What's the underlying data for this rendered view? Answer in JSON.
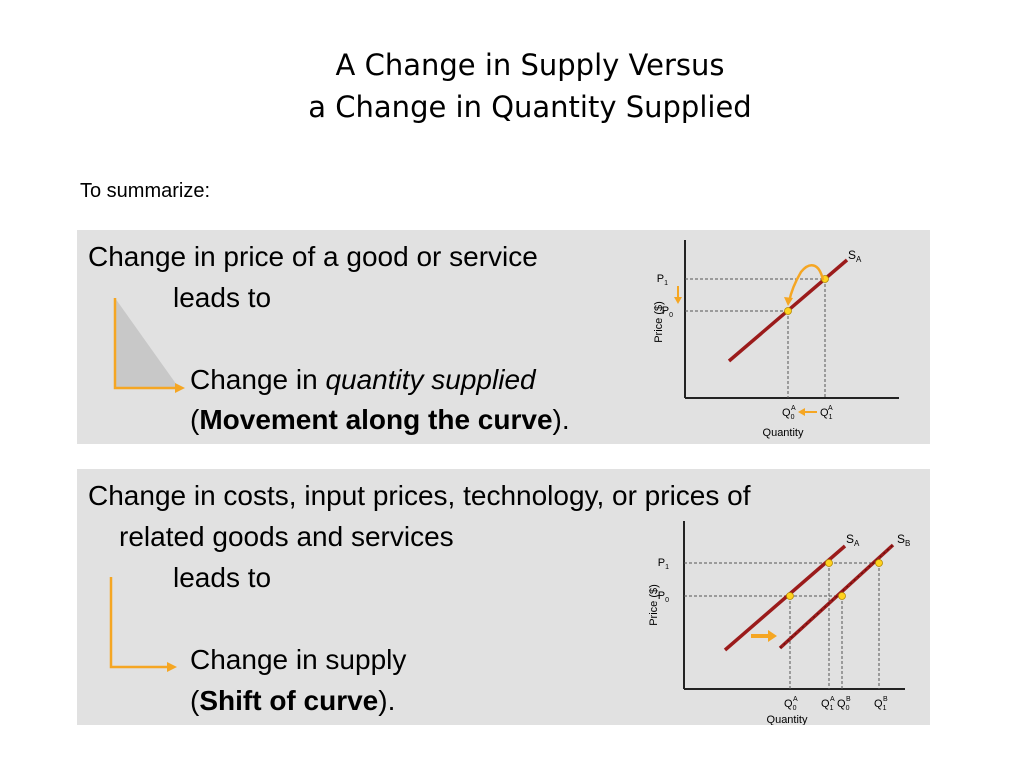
{
  "slide": {
    "title_line1": "A Change in Supply Versus",
    "title_line2": "a Change in Quantity Supplied",
    "intro": "To summarize:"
  },
  "panel1": {
    "line1": "Change in price of a good or service",
    "line2": "leads to",
    "result_prefix": "Change in ",
    "result_emph": "quantity supplied",
    "paren_open": "(",
    "paren_bold": "Movement along the curve",
    "paren_close": ")."
  },
  "panel2": {
    "line1": "Change in costs, input prices, technology, or prices of",
    "line2": "related goods and services",
    "line3": "leads to",
    "result": "Change in supply",
    "paren_open": "(",
    "paren_bold": "Shift of curve",
    "paren_close": ")."
  },
  "chart1": {
    "ylabel": "Price ($)",
    "xlabel": "Quantity",
    "curve_label": "S",
    "curve_sub": "A",
    "p_high": "P",
    "p_high_sub": "1",
    "p_low": "P",
    "p_low_sub": "0",
    "q_left": "Q",
    "q_left_sub": "0",
    "q_left_sup": "A",
    "q_right": "Q",
    "q_right_sub": "1",
    "q_right_sup": "A"
  },
  "chart2": {
    "ylabel": "Price ($)",
    "xlabel": "Quantity",
    "curve_a": "S",
    "curve_a_sub": "A",
    "curve_b": "S",
    "curve_b_sub": "B",
    "p_high": "P",
    "p_high_sub": "1",
    "p_low": "P",
    "p_low_sub": "0",
    "q1": "Q",
    "q1_sub": "0",
    "q1_sup": "A",
    "q2": "Q",
    "q2_sub": "1",
    "q2_sup": "A",
    "q3": "Q",
    "q3_sub": "0",
    "q3_sup": "B",
    "q4": "Q",
    "q4_sub": "1",
    "q4_sup": "B"
  },
  "colors": {
    "panel_bg": "#e1e1e1",
    "arrow_orange": "#f5a623",
    "curve_red": "#9b1b1b",
    "point_yellow": "#ffd21f"
  }
}
